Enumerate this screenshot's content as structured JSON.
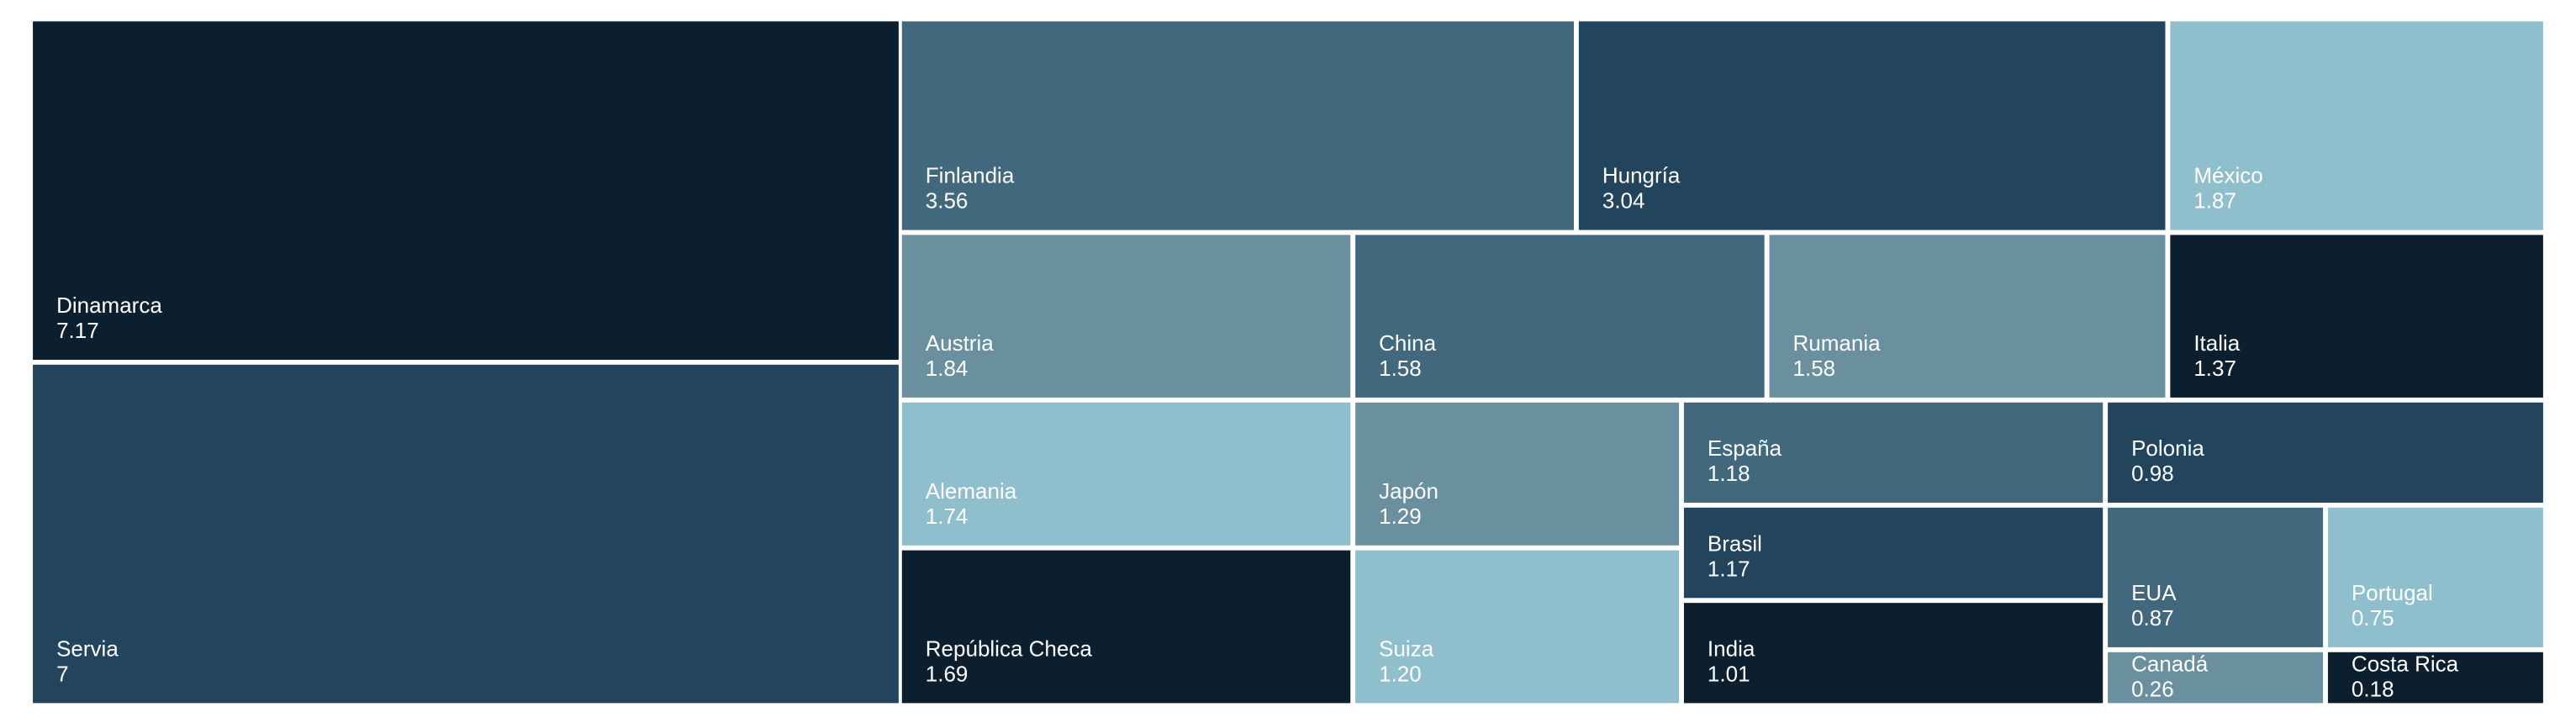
{
  "chart_data": {
    "type": "treemap",
    "categories": [
      "Dinamarca",
      "Servia",
      "Finlandia",
      "Hungría",
      "México",
      "Austria",
      "China",
      "Rumania",
      "Italia",
      "Alemania",
      "República Checa",
      "Japón",
      "Suiza",
      "España",
      "Brasil",
      "India",
      "Polonia",
      "EUA",
      "Portugal",
      "Canadá",
      "Costa Rica"
    ],
    "values": [
      7.17,
      7,
      3.56,
      3.04,
      1.87,
      1.84,
      1.58,
      1.58,
      1.37,
      1.74,
      1.69,
      1.29,
      1.2,
      1.18,
      1.17,
      1.01,
      0.98,
      0.87,
      0.75,
      0.26,
      0.18
    ],
    "value_labels": [
      "7.17",
      "7",
      "3.56",
      "3.04",
      "1.87",
      "1.84",
      "1.58",
      "1.58",
      "1.37",
      "1.74",
      "1.69",
      "1.29",
      "1.20",
      "1.18",
      "1.17",
      "1.01",
      "0.98",
      "0.87",
      "0.75",
      "0.26",
      "0.18"
    ],
    "colors": [
      "#0c1f2e",
      "#22445d",
      "#42687e",
      "#22445d",
      "#8fbfcc",
      "#6a909f",
      "#42687e",
      "#6a909f",
      "#0c1f2e",
      "#8fbfcc",
      "#0c1f2e",
      "#6a909f",
      "#8fbfcc",
      "#42687e",
      "#22445d",
      "#0c1f2e",
      "#22445d",
      "#42687e",
      "#8fbfcc",
      "#6a909f",
      "#0c1f2e"
    ]
  }
}
